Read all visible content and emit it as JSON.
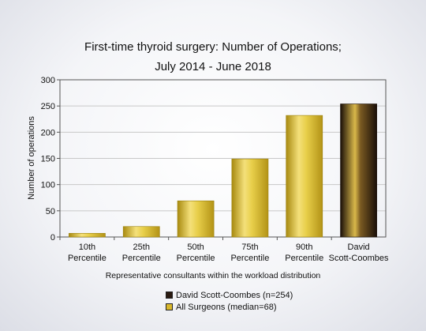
{
  "chart_data": {
    "type": "bar",
    "title": [
      "First-time thyroid surgery: Number of Operations;",
      "July 2014 - June 2018"
    ],
    "xlabel": "Representative consultants within the workload distribution",
    "ylabel": "Number of operations",
    "ylim": [
      0,
      300
    ],
    "yticks": [
      0,
      50,
      100,
      150,
      200,
      250,
      300
    ],
    "grid": true,
    "categories": [
      [
        "10th",
        "Percentile"
      ],
      [
        "25th",
        "Percentile"
      ],
      [
        "50th",
        "Percentile"
      ],
      [
        "75th",
        "Percentile"
      ],
      [
        "90th",
        "Percentile"
      ],
      [
        "David",
        "Scott-Coombes"
      ]
    ],
    "values": [
      7,
      20,
      69,
      149,
      232,
      254
    ],
    "highlight_index": 5,
    "colors": {
      "all_surgeons": "#d8b72c",
      "highlight": "#2a1a10"
    }
  },
  "legend": [
    {
      "label": "David Scott-Coombes (n=254)",
      "color": "#2a1a10"
    },
    {
      "label": "All Surgeons (median=68)",
      "color": "#d8b72c"
    }
  ]
}
